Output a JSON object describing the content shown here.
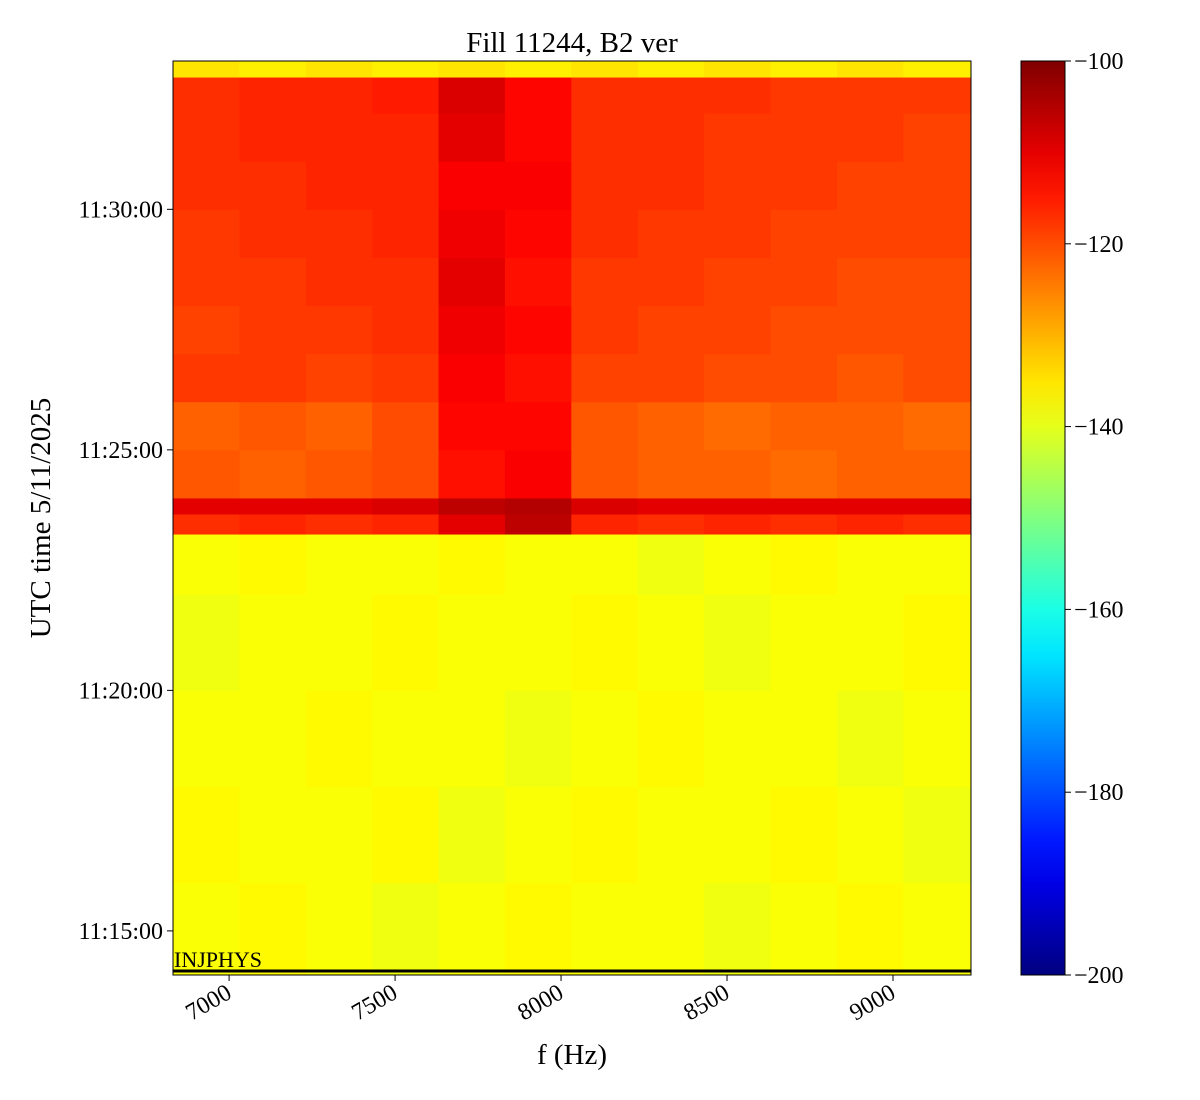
{
  "chart_data": {
    "type": "heatmap",
    "title": "Fill 11244, B2 ver",
    "x_label": "f (Hz)",
    "y_label": "UTC time 5/11/2025",
    "xlim": [
      6831,
      9235
    ],
    "xticks": [
      7000,
      7500,
      8000,
      8500,
      9000
    ],
    "ylim": [
      "11:14:05",
      "11:33:05"
    ],
    "yticks": [
      "11:15:00",
      "11:20:00",
      "11:25:00",
      "11:30:00"
    ],
    "x_edges": [
      6831,
      7031,
      7231,
      7431,
      7631,
      7831,
      8031,
      8231,
      8431,
      8631,
      8831,
      9031,
      9235
    ],
    "y_edges": [
      "11:14:05",
      "11:16:00",
      "11:18:00",
      "11:20:00",
      "11:22:00",
      "11:23:15",
      "11:23:40",
      "11:24:00",
      "11:25:00",
      "11:26:00",
      "11:27:00",
      "11:28:00",
      "11:29:00",
      "11:30:00",
      "11:31:00",
      "11:32:00",
      "11:32:45",
      "11:33:05"
    ],
    "z": [
      [
        -138,
        -137,
        -138,
        -139,
        -138,
        -137,
        -138,
        -138,
        -139,
        -138,
        -137,
        -138
      ],
      [
        -137,
        -138,
        -138,
        -137,
        -139,
        -138,
        -137,
        -138,
        -138,
        -137,
        -138,
        -139
      ],
      [
        -138,
        -138,
        -137,
        -138,
        -138,
        -139,
        -138,
        -137,
        -138,
        -138,
        -139,
        -138
      ],
      [
        -139,
        -138,
        -138,
        -137,
        -138,
        -138,
        -137,
        -138,
        -139,
        -138,
        -138,
        -137
      ],
      [
        -138,
        -137,
        -138,
        -138,
        -137,
        -138,
        -138,
        -139,
        -138,
        -137,
        -138,
        -138
      ],
      [
        -117,
        -116,
        -117,
        -116,
        -110,
        -106,
        -116,
        -117,
        -116,
        -117,
        -116,
        -117
      ],
      [
        -110,
        -110,
        -110,
        -109,
        -106,
        -105,
        -109,
        -110,
        -110,
        -110,
        -110,
        -110
      ],
      [
        -121,
        -122,
        -121,
        -120,
        -114,
        -112,
        -121,
        -122,
        -122,
        -123,
        -122,
        -122
      ],
      [
        -122,
        -121,
        -122,
        -120,
        -113,
        -113,
        -121,
        -122,
        -123,
        -122,
        -122,
        -123
      ],
      [
        -118,
        -118,
        -119,
        -118,
        -112,
        -114,
        -119,
        -119,
        -120,
        -120,
        -121,
        -120
      ],
      [
        -119,
        -118,
        -118,
        -117,
        -111,
        -113,
        -118,
        -119,
        -119,
        -120,
        -120,
        -120
      ],
      [
        -118,
        -118,
        -117,
        -117,
        -110,
        -114,
        -118,
        -118,
        -119,
        -119,
        -120,
        -120
      ],
      [
        -118,
        -117,
        -117,
        -116,
        -111,
        -113,
        -117,
        -118,
        -118,
        -119,
        -119,
        -119
      ],
      [
        -117,
        -117,
        -116,
        -116,
        -112,
        -112,
        -117,
        -117,
        -118,
        -118,
        -119,
        -119
      ],
      [
        -117,
        -116,
        -116,
        -116,
        -110,
        -113,
        -117,
        -117,
        -118,
        -118,
        -118,
        -119
      ],
      [
        -117,
        -116,
        -116,
        -115,
        -109,
        -113,
        -117,
        -117,
        -117,
        -118,
        -118,
        -118
      ],
      [
        -135,
        -136,
        -135,
        -136,
        -135,
        -136,
        -135,
        -136,
        -135,
        -136,
        -135,
        -136
      ]
    ],
    "colormap": "jet",
    "clim": [
      -200,
      -100
    ],
    "cticks": [
      {
        "value": -100,
        "label": "−100"
      },
      {
        "value": -120,
        "label": "−120"
      },
      {
        "value": -140,
        "label": "−140"
      },
      {
        "value": -160,
        "label": "−160"
      },
      {
        "value": -180,
        "label": "−180"
      },
      {
        "value": -200,
        "label": "−200"
      }
    ],
    "annotations": [
      {
        "text": "INJPHYS",
        "y": "11:14:10",
        "color": "#000000"
      }
    ]
  }
}
